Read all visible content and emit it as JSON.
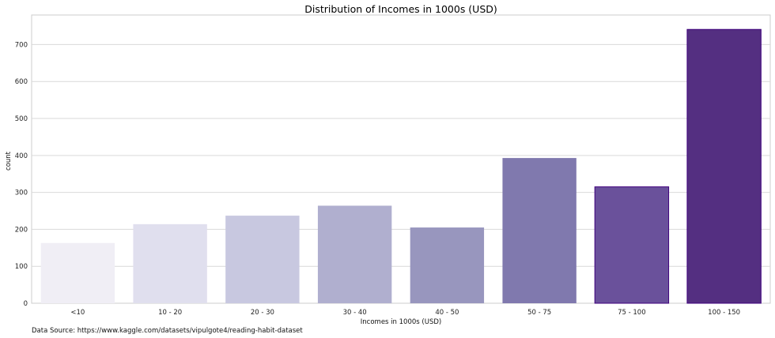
{
  "chart_data": {
    "type": "bar",
    "title": "Distribution of Incomes in 1000s (USD)",
    "xlabel": "Incomes in 1000s (USD)",
    "ylabel": "count",
    "categories": [
      "<10",
      "10 - 20",
      "20 - 30",
      "30 - 40",
      "40 - 50",
      "50 - 75",
      "75 - 100",
      "100 - 150"
    ],
    "values": [
      163,
      214,
      237,
      264,
      205,
      393,
      315,
      741
    ],
    "ylim": [
      0,
      780
    ],
    "yticks": [
      0,
      100,
      200,
      300,
      400,
      500,
      600,
      700
    ],
    "grid": "horizontal",
    "colors": [
      "#f0eef5",
      "#e0dfee",
      "#c8c8e0",
      "#b0afcf",
      "#9896be",
      "#8079ae",
      "#6a519b",
      "#542f81"
    ],
    "edge_color": "#3f007d"
  },
  "footer": {
    "source": "Data Source: https://www.kaggle.com/datasets/vipulgote4/reading-habit-dataset"
  }
}
